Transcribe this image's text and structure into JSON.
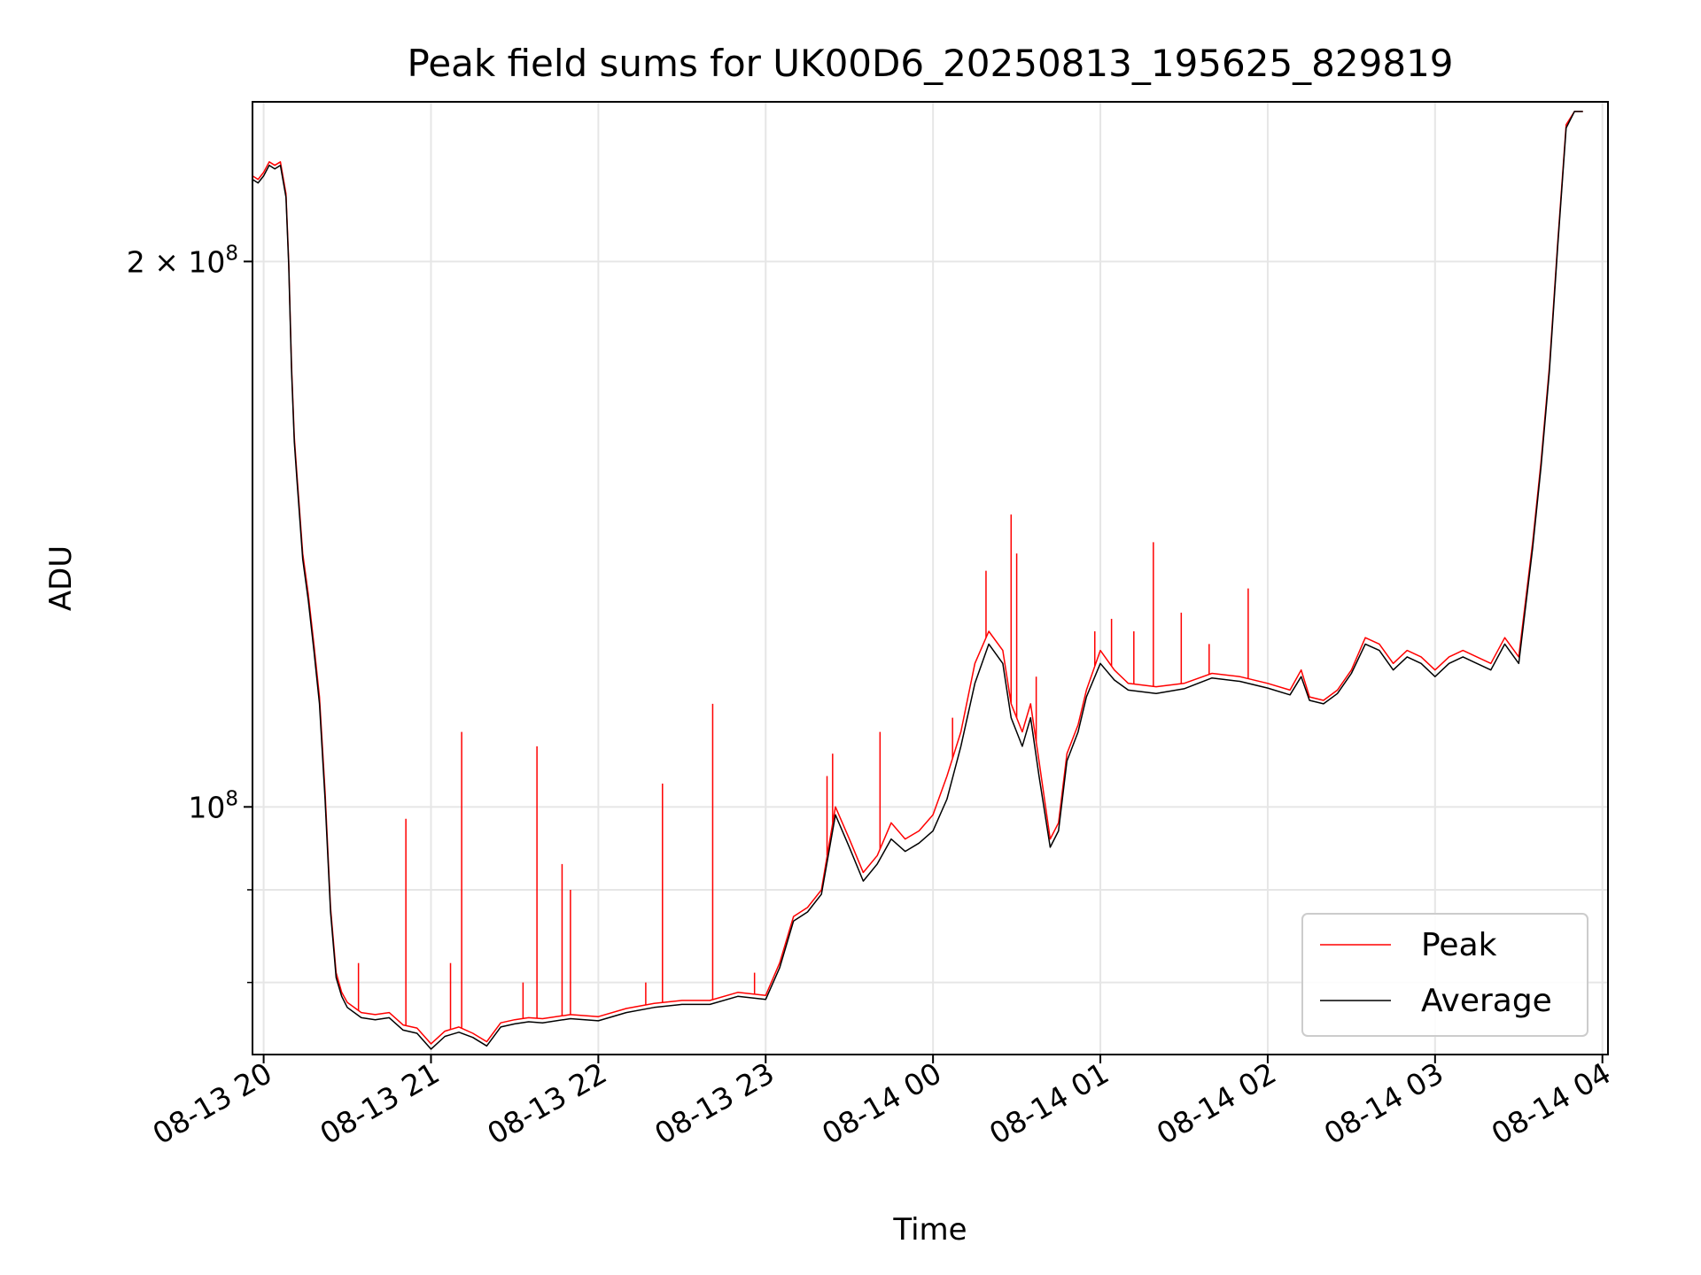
{
  "chart_data": {
    "type": "line",
    "title": "Peak field sums for UK00D6_20250813_195625_829819",
    "xlabel": "Time",
    "ylabel": "ADU",
    "y_scale": "log",
    "ylim": [
      73000000,
      245000000
    ],
    "xlim": [
      "2025-08-13 19:56",
      "2025-08-14 04:02"
    ],
    "x_ticks": [
      "08-13 20",
      "08-13 21",
      "08-13 22",
      "08-13 23",
      "08-14 00",
      "08-14 01",
      "08-14 02",
      "08-14 03",
      "08-14 04"
    ],
    "x_tick_times": [
      "2025-08-13 20:00",
      "2025-08-13 21:00",
      "2025-08-13 22:00",
      "2025-08-13 23:00",
      "2025-08-14 00:00",
      "2025-08-14 01:00",
      "2025-08-14 02:00",
      "2025-08-14 03:00",
      "2025-08-14 04:00"
    ],
    "y_ticks": [
      {
        "label_base": "2 × 10",
        "label_exp": "8",
        "value": 200000000
      },
      {
        "label_base": "10",
        "label_exp": "8",
        "value": 100000000
      }
    ],
    "y_minor_ticks": [
      80000000,
      90000000
    ],
    "grid": true,
    "legend": {
      "position": "lower right",
      "entries": [
        "Peak",
        "Average"
      ]
    },
    "colors": {
      "peak": "#ff0000",
      "average": "#000000",
      "grid": "#e6e6e6"
    },
    "series": [
      {
        "name": "Peak",
        "x": [
          "2025-08-13 19:56",
          "2025-08-13 19:58",
          "2025-08-13 20:00",
          "2025-08-13 20:02",
          "2025-08-13 20:04",
          "2025-08-13 20:06",
          "2025-08-13 20:08",
          "2025-08-13 20:09",
          "2025-08-13 20:10",
          "2025-08-13 20:11",
          "2025-08-13 20:12",
          "2025-08-13 20:14",
          "2025-08-13 20:16",
          "2025-08-13 20:18",
          "2025-08-13 20:20",
          "2025-08-13 20:22",
          "2025-08-13 20:24",
          "2025-08-13 20:26",
          "2025-08-13 20:28",
          "2025-08-13 20:30",
          "2025-08-13 20:35",
          "2025-08-13 20:40",
          "2025-08-13 20:45",
          "2025-08-13 20:50",
          "2025-08-13 20:55",
          "2025-08-13 21:00",
          "2025-08-13 21:05",
          "2025-08-13 21:10",
          "2025-08-13 21:15",
          "2025-08-13 21:20",
          "2025-08-13 21:25",
          "2025-08-13 21:30",
          "2025-08-13 21:35",
          "2025-08-13 21:40",
          "2025-08-13 21:50",
          "2025-08-13 22:00",
          "2025-08-13 22:10",
          "2025-08-13 22:20",
          "2025-08-13 22:30",
          "2025-08-13 22:40",
          "2025-08-13 22:50",
          "2025-08-13 23:00",
          "2025-08-13 23:05",
          "2025-08-13 23:10",
          "2025-08-13 23:15",
          "2025-08-13 23:20",
          "2025-08-13 23:25",
          "2025-08-13 23:30",
          "2025-08-13 23:35",
          "2025-08-13 23:40",
          "2025-08-13 23:45",
          "2025-08-13 23:50",
          "2025-08-13 23:55",
          "2025-08-14 00:00",
          "2025-08-14 00:05",
          "2025-08-14 00:10",
          "2025-08-14 00:15",
          "2025-08-14 00:20",
          "2025-08-14 00:25",
          "2025-08-14 00:28",
          "2025-08-14 00:32",
          "2025-08-14 00:35",
          "2025-08-14 00:38",
          "2025-08-14 00:42",
          "2025-08-14 00:45",
          "2025-08-14 00:48",
          "2025-08-14 00:52",
          "2025-08-14 00:55",
          "2025-08-14 01:00",
          "2025-08-14 01:05",
          "2025-08-14 01:10",
          "2025-08-14 01:20",
          "2025-08-14 01:30",
          "2025-08-14 01:40",
          "2025-08-14 01:50",
          "2025-08-14 02:00",
          "2025-08-14 02:08",
          "2025-08-14 02:12",
          "2025-08-14 02:15",
          "2025-08-14 02:20",
          "2025-08-14 02:25",
          "2025-08-14 02:30",
          "2025-08-14 02:35",
          "2025-08-14 02:40",
          "2025-08-14 02:45",
          "2025-08-14 02:50",
          "2025-08-14 02:55",
          "2025-08-14 03:00",
          "2025-08-14 03:05",
          "2025-08-14 03:10",
          "2025-08-14 03:15",
          "2025-08-14 03:20",
          "2025-08-14 03:25",
          "2025-08-14 03:30",
          "2025-08-14 03:35",
          "2025-08-14 03:38",
          "2025-08-14 03:41",
          "2025-08-14 03:44",
          "2025-08-14 03:47",
          "2025-08-14 03:50",
          "2025-08-14 03:53"
        ],
        "y": [
          223000000,
          222000000,
          224000000,
          227000000,
          226000000,
          227000000,
          218000000,
          200000000,
          175000000,
          160000000,
          152000000,
          138000000,
          131000000,
          123000000,
          115000000,
          102000000,
          88000000,
          81000000,
          79000000,
          78000000,
          77000000,
          76800000,
          77000000,
          75800000,
          75500000,
          74000000,
          75200000,
          75600000,
          75000000,
          74200000,
          76000000,
          76300000,
          76500000,
          76400000,
          76800000,
          76600000,
          77400000,
          77900000,
          78200000,
          78200000,
          79000000,
          78700000,
          82000000,
          87000000,
          88000000,
          90000000,
          100000000,
          96000000,
          92000000,
          94000000,
          98000000,
          96000000,
          97000000,
          99000000,
          104000000,
          110000000,
          120000000,
          125000000,
          122000000,
          114000000,
          110000000,
          114000000,
          106000000,
          96000000,
          98000000,
          107000000,
          111000000,
          116000000,
          122000000,
          119000000,
          117000000,
          116500000,
          117000000,
          118500000,
          118000000,
          117000000,
          116000000,
          119000000,
          115000000,
          114500000,
          116000000,
          119000000,
          124000000,
          123000000,
          120000000,
          122000000,
          121000000,
          119000000,
          121000000,
          122000000,
          121000000,
          120000000,
          124000000,
          121000000,
          140000000,
          155000000,
          175000000,
          205000000,
          238000000,
          242000000,
          242000000
        ],
        "spikes": [
          {
            "x": "2025-08-13 20:34",
            "y": 82000000
          },
          {
            "x": "2025-08-13 20:51",
            "y": 98500000
          },
          {
            "x": "2025-08-13 21:07",
            "y": 82000000
          },
          {
            "x": "2025-08-13 21:11",
            "y": 110000000
          },
          {
            "x": "2025-08-13 21:33",
            "y": 80000000
          },
          {
            "x": "2025-08-13 21:38",
            "y": 108000000
          },
          {
            "x": "2025-08-13 21:47",
            "y": 93000000
          },
          {
            "x": "2025-08-13 21:50",
            "y": 90000000
          },
          {
            "x": "2025-08-13 22:17",
            "y": 80000000
          },
          {
            "x": "2025-08-13 22:23",
            "y": 103000000
          },
          {
            "x": "2025-08-13 22:41",
            "y": 114000000
          },
          {
            "x": "2025-08-13 22:56",
            "y": 81000000
          },
          {
            "x": "2025-08-13 23:22",
            "y": 104000000
          },
          {
            "x": "2025-08-13 23:24",
            "y": 107000000
          },
          {
            "x": "2025-08-13 23:41",
            "y": 110000000
          },
          {
            "x": "2025-08-14 00:07",
            "y": 112000000
          },
          {
            "x": "2025-08-14 00:19",
            "y": 135000000
          },
          {
            "x": "2025-08-14 00:28",
            "y": 145000000
          },
          {
            "x": "2025-08-14 00:30",
            "y": 138000000
          },
          {
            "x": "2025-08-14 00:37",
            "y": 118000000
          },
          {
            "x": "2025-08-14 00:58",
            "y": 125000000
          },
          {
            "x": "2025-08-14 01:04",
            "y": 127000000
          },
          {
            "x": "2025-08-14 01:12",
            "y": 125000000
          },
          {
            "x": "2025-08-14 01:19",
            "y": 140000000
          },
          {
            "x": "2025-08-14 01:29",
            "y": 128000000
          },
          {
            "x": "2025-08-14 01:39",
            "y": 123000000
          },
          {
            "x": "2025-08-14 01:53",
            "y": 132000000
          }
        ]
      },
      {
        "name": "Average",
        "x": [
          "2025-08-13 19:56",
          "2025-08-13 19:58",
          "2025-08-13 20:00",
          "2025-08-13 20:02",
          "2025-08-13 20:04",
          "2025-08-13 20:06",
          "2025-08-13 20:08",
          "2025-08-13 20:09",
          "2025-08-13 20:10",
          "2025-08-13 20:11",
          "2025-08-13 20:12",
          "2025-08-13 20:14",
          "2025-08-13 20:16",
          "2025-08-13 20:18",
          "2025-08-13 20:20",
          "2025-08-13 20:22",
          "2025-08-13 20:24",
          "2025-08-13 20:26",
          "2025-08-13 20:28",
          "2025-08-13 20:30",
          "2025-08-13 20:35",
          "2025-08-13 20:40",
          "2025-08-13 20:45",
          "2025-08-13 20:50",
          "2025-08-13 20:55",
          "2025-08-13 21:00",
          "2025-08-13 21:05",
          "2025-08-13 21:10",
          "2025-08-13 21:15",
          "2025-08-13 21:20",
          "2025-08-13 21:25",
          "2025-08-13 21:30",
          "2025-08-13 21:35",
          "2025-08-13 21:40",
          "2025-08-13 21:50",
          "2025-08-13 22:00",
          "2025-08-13 22:10",
          "2025-08-13 22:20",
          "2025-08-13 22:30",
          "2025-08-13 22:40",
          "2025-08-13 22:50",
          "2025-08-13 23:00",
          "2025-08-13 23:05",
          "2025-08-13 23:10",
          "2025-08-13 23:15",
          "2025-08-13 23:20",
          "2025-08-13 23:25",
          "2025-08-13 23:30",
          "2025-08-13 23:35",
          "2025-08-13 23:40",
          "2025-08-13 23:45",
          "2025-08-13 23:50",
          "2025-08-13 23:55",
          "2025-08-14 00:00",
          "2025-08-14 00:05",
          "2025-08-14 00:10",
          "2025-08-14 00:15",
          "2025-08-14 00:20",
          "2025-08-14 00:25",
          "2025-08-14 00:28",
          "2025-08-14 00:32",
          "2025-08-14 00:35",
          "2025-08-14 00:38",
          "2025-08-14 00:42",
          "2025-08-14 00:45",
          "2025-08-14 00:48",
          "2025-08-14 00:52",
          "2025-08-14 00:55",
          "2025-08-14 01:00",
          "2025-08-14 01:05",
          "2025-08-14 01:10",
          "2025-08-14 01:20",
          "2025-08-14 01:30",
          "2025-08-14 01:40",
          "2025-08-14 01:50",
          "2025-08-14 02:00",
          "2025-08-14 02:08",
          "2025-08-14 02:12",
          "2025-08-14 02:15",
          "2025-08-14 02:20",
          "2025-08-14 02:25",
          "2025-08-14 02:30",
          "2025-08-14 02:35",
          "2025-08-14 02:40",
          "2025-08-14 02:45",
          "2025-08-14 02:50",
          "2025-08-14 02:55",
          "2025-08-14 03:00",
          "2025-08-14 03:05",
          "2025-08-14 03:10",
          "2025-08-14 03:15",
          "2025-08-14 03:20",
          "2025-08-14 03:25",
          "2025-08-14 03:30",
          "2025-08-14 03:35",
          "2025-08-14 03:38",
          "2025-08-14 03:41",
          "2025-08-14 03:44",
          "2025-08-14 03:47",
          "2025-08-14 03:50",
          "2025-08-14 03:53"
        ],
        "y": [
          222000000,
          221000000,
          223000000,
          226000000,
          225000000,
          226000000,
          217000000,
          199000000,
          174000000,
          159000000,
          151000000,
          137000000,
          130000000,
          122000000,
          114000000,
          101000000,
          87500000,
          80500000,
          78600000,
          77500000,
          76500000,
          76300000,
          76500000,
          75300000,
          75000000,
          73500000,
          74700000,
          75100000,
          74600000,
          73800000,
          75600000,
          75900000,
          76100000,
          76000000,
          76400000,
          76200000,
          77000000,
          77500000,
          77800000,
          77800000,
          78600000,
          78300000,
          81500000,
          86500000,
          87500000,
          89500000,
          99000000,
          95000000,
          91000000,
          93000000,
          96000000,
          94500000,
          95500000,
          97000000,
          101000000,
          108000000,
          117000000,
          123000000,
          120000000,
          112000000,
          108000000,
          112000000,
          104000000,
          95000000,
          97000000,
          106000000,
          110000000,
          115000000,
          120000000,
          117500000,
          116000000,
          115500000,
          116200000,
          117800000,
          117300000,
          116300000,
          115300000,
          118000000,
          114500000,
          114000000,
          115500000,
          118500000,
          123000000,
          122000000,
          119000000,
          121000000,
          120000000,
          118000000,
          120000000,
          121000000,
          120000000,
          119000000,
          123000000,
          120000000,
          139000000,
          154000000,
          174000000,
          204000000,
          237000000,
          242000000,
          242000000
        ]
      }
    ]
  }
}
